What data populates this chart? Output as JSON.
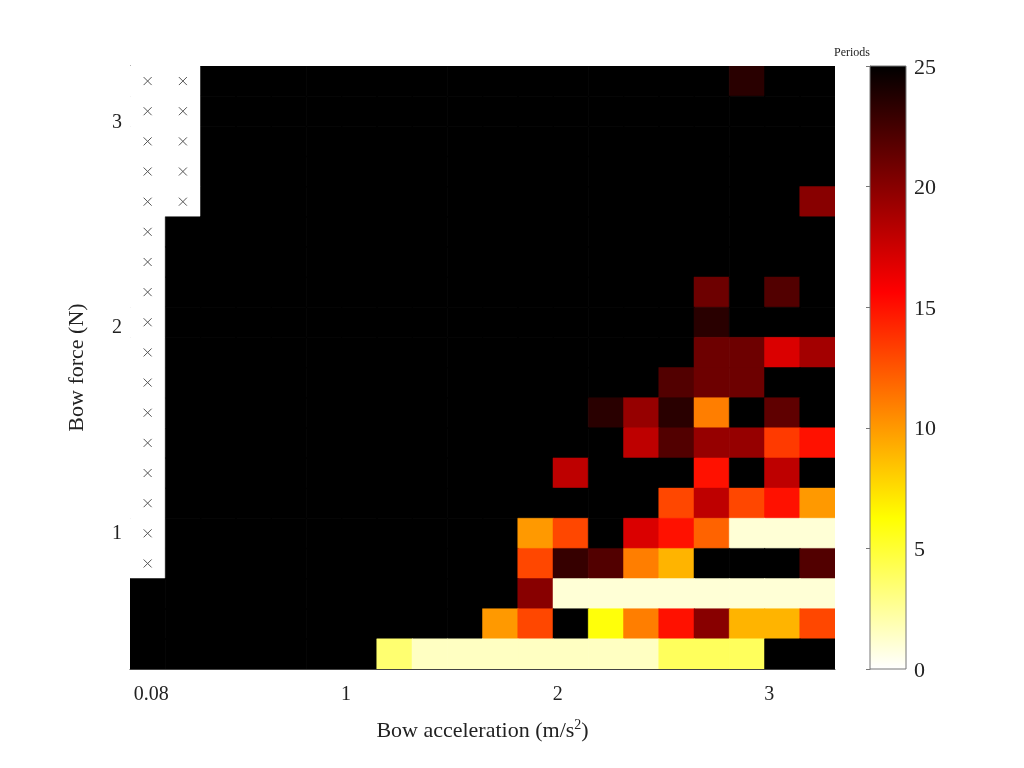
{
  "chart_data": {
    "type": "heatmap",
    "xlabel": "Bow acceleration (m/s$^{2}$)",
    "ylabel": "Bow force (N)",
    "clabel": "Periods",
    "xlim": [
      -0.02,
      3.31
    ],
    "xticks": [
      0.08,
      1,
      2,
      3
    ],
    "ylim": [
      0.33,
      3.27
    ],
    "yticks": [
      1,
      2,
      3
    ],
    "clim": [
      0,
      25
    ],
    "cticks": [
      0,
      5,
      10,
      15,
      20,
      25
    ],
    "cells": [
      [
        null,
        null,
        25,
        25,
        25,
        25,
        25,
        25,
        25,
        25,
        25,
        25,
        25,
        25,
        25,
        25,
        25,
        23.5,
        25,
        25
      ],
      [
        null,
        null,
        25,
        25,
        25,
        25,
        25,
        25,
        25,
        25,
        25,
        25,
        25,
        25,
        25,
        25,
        25,
        25,
        25,
        25
      ],
      [
        null,
        null,
        25,
        25,
        25,
        25,
        25,
        25,
        25,
        25,
        25,
        25,
        25,
        25,
        25,
        25,
        25,
        25,
        25,
        25
      ],
      [
        null,
        null,
        25,
        25,
        25,
        25,
        25,
        25,
        25,
        25,
        25,
        25,
        25,
        25,
        25,
        25,
        25,
        25,
        25,
        25
      ],
      [
        null,
        null,
        25,
        25,
        25,
        25,
        25,
        25,
        25,
        25,
        25,
        25,
        25,
        25,
        25,
        25,
        25,
        25,
        25,
        20
      ],
      [
        null,
        25,
        25,
        25,
        25,
        25,
        25,
        25,
        25,
        25,
        25,
        25,
        25,
        25,
        25,
        25,
        25,
        25,
        25,
        25
      ],
      [
        null,
        25,
        25,
        25,
        25,
        25,
        25,
        25,
        25,
        25,
        25,
        25,
        25,
        25,
        25,
        25,
        25,
        25,
        25,
        25
      ],
      [
        null,
        25,
        25,
        25,
        25,
        25,
        25,
        25,
        25,
        25,
        25,
        25,
        25,
        25,
        25,
        25,
        21,
        25,
        22,
        25
      ],
      [
        null,
        25,
        25,
        25,
        25,
        25,
        25,
        25,
        25,
        25,
        25,
        25,
        25,
        25,
        25,
        25,
        23.5,
        25,
        25,
        25
      ],
      [
        null,
        25,
        25,
        25,
        25,
        25,
        25,
        25,
        25,
        25,
        25,
        25,
        25,
        25,
        25,
        25,
        21,
        21,
        17,
        19
      ],
      [
        null,
        25,
        25,
        25,
        25,
        25,
        25,
        25,
        25,
        25,
        25,
        25,
        25,
        25,
        25,
        22,
        21,
        21,
        25,
        25
      ],
      [
        null,
        25,
        25,
        25,
        25,
        25,
        25,
        25,
        25,
        25,
        25,
        25,
        25,
        23.5,
        19.5,
        23.5,
        11,
        25,
        21.5,
        25
      ],
      [
        null,
        25,
        25,
        25,
        25,
        25,
        25,
        25,
        25,
        25,
        25,
        25,
        25,
        25,
        18,
        22,
        19.5,
        19.5,
        13.5,
        15
      ],
      [
        null,
        25,
        25,
        25,
        25,
        25,
        25,
        25,
        25,
        25,
        25,
        25,
        18,
        25,
        25,
        25,
        15,
        25,
        18,
        25
      ],
      [
        null,
        25,
        25,
        25,
        25,
        25,
        25,
        25,
        25,
        25,
        25,
        25,
        25,
        25,
        25,
        13,
        18,
        13,
        15,
        10
      ],
      [
        null,
        25,
        25,
        25,
        25,
        25,
        25,
        25,
        25,
        25,
        25,
        10,
        13,
        25,
        17,
        15,
        12,
        1,
        1,
        1
      ],
      [
        null,
        25,
        25,
        25,
        25,
        25,
        25,
        25,
        25,
        25,
        25,
        13,
        23,
        22,
        11,
        9,
        25,
        25,
        25,
        22
      ],
      [
        25,
        25,
        25,
        25,
        25,
        25,
        25,
        25,
        25,
        25,
        25,
        20,
        1,
        1,
        1,
        1,
        1,
        1,
        1,
        1
      ],
      [
        25,
        25,
        25,
        25,
        25,
        25,
        25,
        25,
        25,
        25,
        10,
        13,
        25,
        6,
        11,
        15,
        20,
        9,
        9,
        13
      ],
      [
        25,
        25,
        25,
        25,
        25,
        25,
        25,
        3.5,
        1.5,
        1.5,
        1.5,
        1.5,
        1.5,
        1.5,
        1.5,
        4,
        4,
        4,
        25,
        25
      ]
    ]
  }
}
